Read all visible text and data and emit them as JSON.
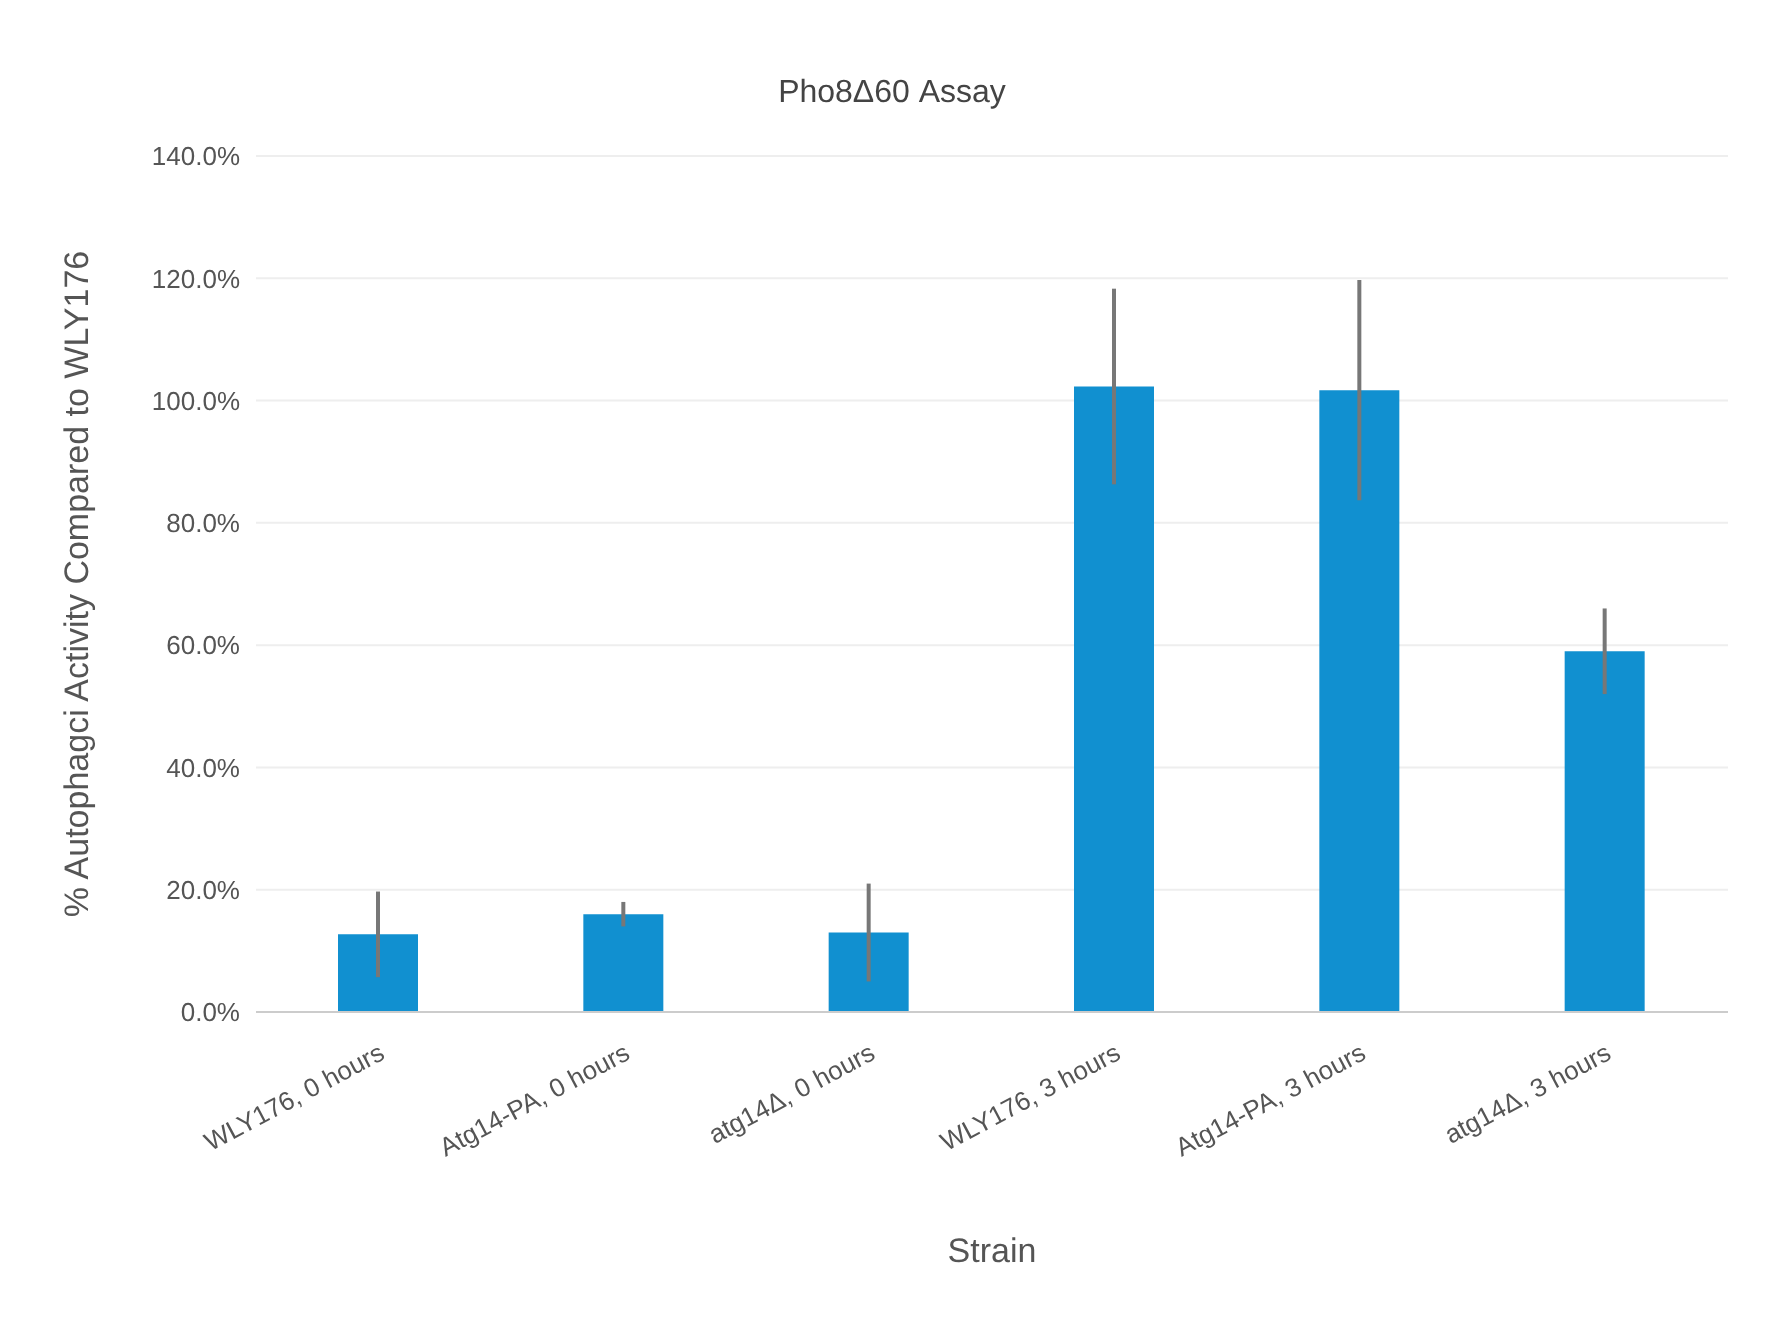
{
  "chart_data": {
    "type": "bar",
    "title": "Pho8Δ60 Assay",
    "xlabel": "Strain",
    "ylabel": "% Autophagci Activity Compared to WLY176",
    "categories": [
      "WLY176, 0 hours",
      "Atg14-PA, 0 hours",
      "atg14Δ, 0 hours",
      "WLY176, 3 hours",
      "Atg14-PA, 3 hours",
      "atg14Δ, 3 hours"
    ],
    "values": [
      12.7,
      16,
      13,
      102.3,
      101.7,
      59
    ],
    "errors": [
      7,
      2,
      8,
      16,
      18,
      7
    ],
    "color": "#1190d0",
    "ylim": [
      0,
      140
    ],
    "yticks": [
      {
        "value": 0,
        "label": "0.0%"
      },
      {
        "value": 20,
        "label": "20.0%"
      },
      {
        "value": 40,
        "label": "40.0%"
      },
      {
        "value": 60,
        "label": "60.0%"
      },
      {
        "value": 80,
        "label": "80.0%"
      },
      {
        "value": 100,
        "label": "100.0%"
      },
      {
        "value": 120,
        "label": "120.0%"
      },
      {
        "value": 140,
        "label": "140.0%"
      }
    ],
    "grid": "y"
  }
}
